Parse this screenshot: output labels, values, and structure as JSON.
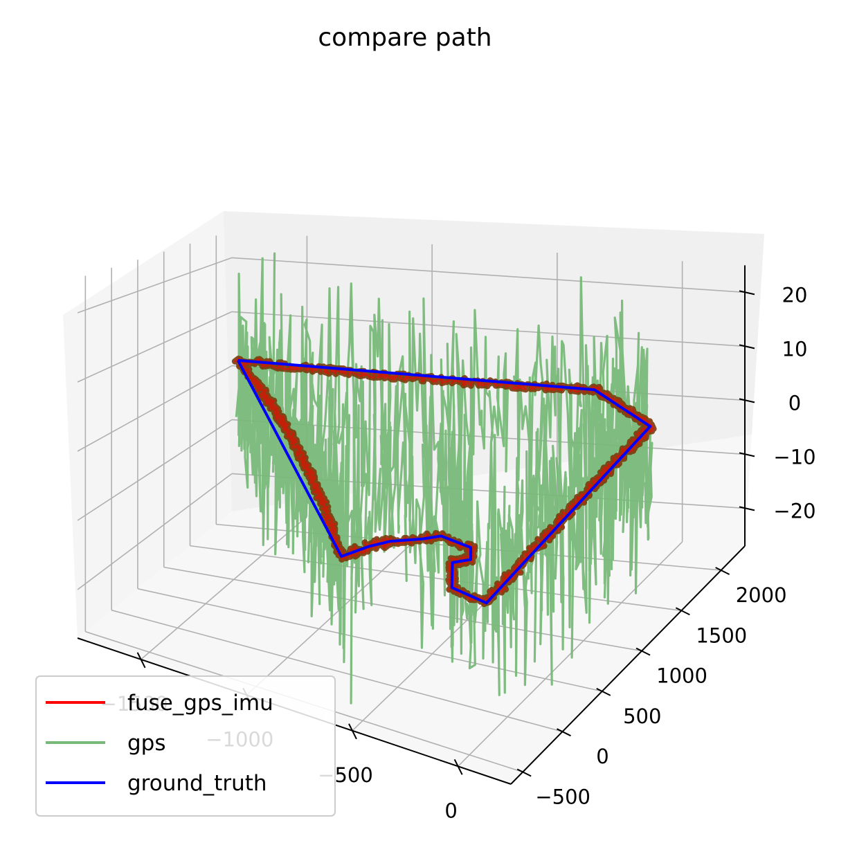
{
  "chart_data": {
    "type": "line",
    "projection": "3d",
    "title": "compare path",
    "xlabel": "",
    "ylabel": "",
    "zlabel": "",
    "x_ticks": [
      "−1500",
      "−1000",
      "−500",
      "0"
    ],
    "y_ticks": [
      "−500",
      "0",
      "500",
      "1000",
      "1500",
      "2000"
    ],
    "z_ticks": [
      "−20",
      "−10",
      "0",
      "10",
      "20"
    ],
    "xlim": [
      -1800,
      250
    ],
    "ylim": [
      -650,
      2300
    ],
    "zlim": [
      -27,
      25
    ],
    "legend_position": "lower-left",
    "series": [
      {
        "name": "fuse_gps_imu",
        "color": "#ff0000",
        "points": [
          [
            -1600,
            1500,
            6
          ],
          [
            -250,
            1950,
            4
          ],
          [
            120,
            1500,
            4
          ],
          [
            80,
            -500,
            -4
          ],
          [
            -100,
            -450,
            -4
          ],
          [
            -200,
            -150,
            -4
          ],
          [
            -150,
            -50,
            -4
          ],
          [
            -200,
            100,
            -4
          ],
          [
            -350,
            150,
            -4
          ],
          [
            -400,
            50,
            -4
          ],
          [
            -500,
            -100,
            -4
          ],
          [
            -550,
            -250,
            -4
          ],
          [
            -600,
            -500,
            -4
          ],
          [
            -1600,
            1500,
            6
          ]
        ]
      },
      {
        "name": "gps",
        "color": "#78b878",
        "noise_amplitude": 20,
        "points": [
          [
            -1600,
            1500,
            0
          ],
          [
            -250,
            1950,
            0
          ],
          [
            120,
            1500,
            0
          ],
          [
            80,
            -500,
            0
          ],
          [
            -100,
            -450,
            0
          ],
          [
            -200,
            -150,
            0
          ],
          [
            -150,
            -50,
            0
          ],
          [
            -200,
            100,
            0
          ],
          [
            -350,
            150,
            0
          ],
          [
            -400,
            50,
            0
          ],
          [
            -500,
            -100,
            0
          ],
          [
            -550,
            -250,
            0
          ],
          [
            -600,
            -500,
            0
          ],
          [
            -1600,
            1500,
            0
          ]
        ]
      },
      {
        "name": "ground_truth",
        "color": "#0000ff",
        "points": [
          [
            -1600,
            1500,
            6
          ],
          [
            -250,
            1950,
            4
          ],
          [
            120,
            1500,
            4
          ],
          [
            80,
            -500,
            -4
          ],
          [
            -100,
            -450,
            -4
          ],
          [
            -200,
            -150,
            -4
          ],
          [
            -150,
            -50,
            -4
          ],
          [
            -200,
            100,
            -4
          ],
          [
            -350,
            150,
            -4
          ],
          [
            -400,
            50,
            -4
          ],
          [
            -500,
            -100,
            -4
          ],
          [
            -550,
            -250,
            -4
          ],
          [
            -600,
            -500,
            -4
          ],
          [
            -1600,
            1500,
            6
          ]
        ]
      }
    ]
  }
}
